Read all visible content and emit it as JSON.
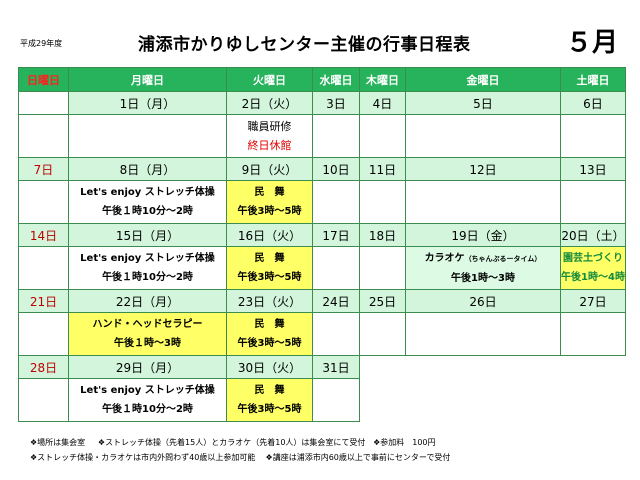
{
  "header": {
    "era": "平成29年度",
    "title": "浦添市かりゆしセンター主催の行事日程表",
    "month": "５月"
  },
  "weekdays": [
    "日曜日",
    "月曜日",
    "火曜日",
    "水曜日",
    "木曜日",
    "金曜日",
    "土曜日"
  ],
  "weeks": [
    {
      "dates": [
        "",
        "1日（月）",
        "2日（火）",
        "3日",
        "4日",
        "5日",
        "6日"
      ],
      "events": {
        "tue": [
          "職員研修",
          "終日休館"
        ]
      }
    },
    {
      "dates": [
        "7日",
        "8日（月）",
        "9日（火）",
        "10日",
        "11日",
        "12日",
        "13日"
      ],
      "events": {
        "mon": [
          "Let's enjoy ストレッチ体操",
          "午後１時10分〜2時"
        ],
        "tue": [
          "民　舞",
          "午後3時〜5時"
        ]
      }
    },
    {
      "dates": [
        "14日",
        "15日（月）",
        "16日（火）",
        "17日",
        "18日",
        "19日（金）",
        "20日（土）"
      ],
      "events": {
        "mon": [
          "Let's enjoy ストレッチ体操",
          "午後１時10分〜2時"
        ],
        "tue": [
          "民　舞",
          "午後3時〜5時"
        ],
        "fri": [
          "カラオケ",
          "（ちゃんぷるータイム）",
          "午後1時〜3時"
        ],
        "sat": [
          "園芸土づくり",
          "午後1時〜4時"
        ]
      }
    },
    {
      "dates": [
        "21日",
        "22日（月）",
        "23日（火）",
        "24日",
        "25日",
        "26日",
        "27日"
      ],
      "events": {
        "mon": [
          "ハンド・ヘッドセラピー",
          "午後１時〜3時"
        ],
        "tue": [
          "民　舞",
          "午後3時〜5時"
        ]
      }
    },
    {
      "dates": [
        "28日",
        "29日（月）",
        "30日（火）",
        "31日"
      ],
      "events": {
        "mon": [
          "Let's enjoy ストレッチ体操",
          "午後１時10分〜2時"
        ],
        "tue": [
          "民　舞",
          "午後3時〜5時"
        ]
      }
    }
  ],
  "notes": {
    "line1_a": "❖場所は集会室",
    "line1_b": "❖ストレッチ体操（先着15人）とカラオケ（先着10人）は集会室にて受付",
    "line1_c": "❖参加料　100円",
    "line2_a": "❖ストレッチ体操・カラオケは市内外問わず40歳以上参加可能",
    "line2_b": "❖講座は浦添市内60歳以上で事前にセンターで受付"
  },
  "colors": {
    "header_green": "#26b35c",
    "date_row": "#d2f5dc",
    "highlight_yellow": "#ffff66",
    "highlight_lightgreen": "#ddfbe4",
    "sunday_red": "#e00000"
  }
}
